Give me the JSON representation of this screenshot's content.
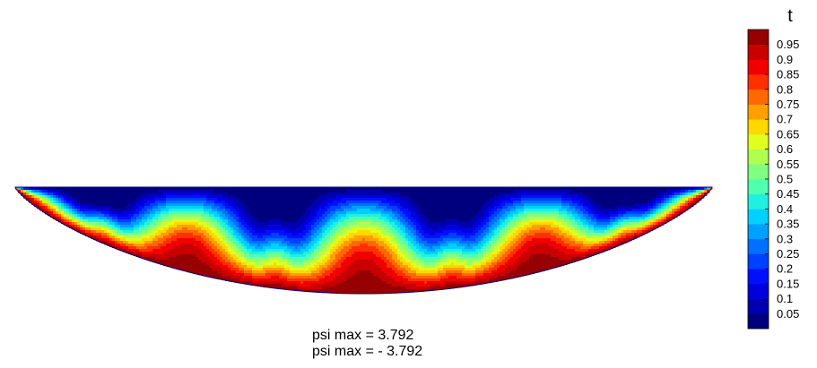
{
  "chart_data": {
    "type": "heatmap",
    "colorbar": {
      "title": "t",
      "ticks": [
        "0.95",
        "0.9",
        "0.85",
        "0.8",
        "0.75",
        "0.7",
        "0.65",
        "0.6",
        "0.55",
        "0.5",
        "0.45",
        "0.4",
        "0.35",
        "0.3",
        "0.25",
        "0.2",
        "0.15",
        "0.1",
        "0.05"
      ],
      "levels": [
        0.0,
        0.05,
        0.1,
        0.15,
        0.2,
        0.25,
        0.3,
        0.35,
        0.4,
        0.45,
        0.5,
        0.55,
        0.6,
        0.65,
        0.7,
        0.75,
        0.8,
        0.85,
        0.9,
        0.95,
        1.0
      ],
      "colors": [
        "#00007f",
        "#0000b0",
        "#0000dd",
        "#0010ff",
        "#0040ff",
        "#0070ff",
        "#00a0ff",
        "#00d0ff",
        "#20f0e0",
        "#50ffb0",
        "#80ff80",
        "#b0ff50",
        "#e0ff20",
        "#ffd800",
        "#ffa000",
        "#ff6800",
        "#ff3000",
        "#f00000",
        "#c80000",
        "#960000"
      ]
    },
    "field": {
      "rolls": 8,
      "first_roll": "cold",
      "top_boundary": 0.0,
      "bottom_boundary": 1.0
    },
    "annotations": [
      "psi max = 3.792",
      "psi max = - 3.792"
    ],
    "grid": false,
    "legend_position": "right"
  }
}
